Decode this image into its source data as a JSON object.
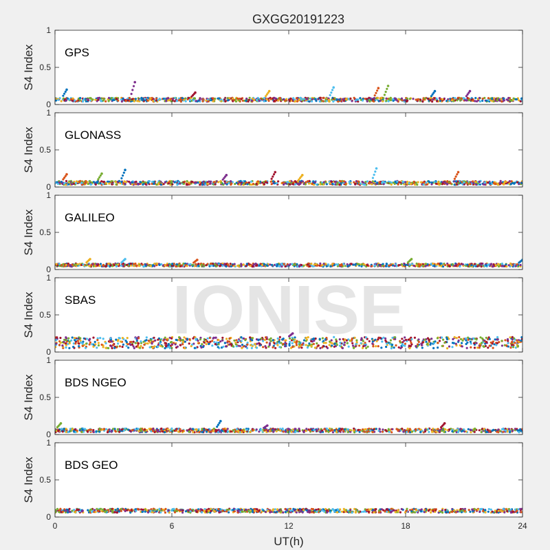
{
  "watermark": "IONISE",
  "chart_data": {
    "type": "scatter",
    "title": "GXGG20191223",
    "xlabel": "UT(h)",
    "ylabel": "S4 Index",
    "xlim": [
      0,
      24
    ],
    "ylim": [
      0,
      1
    ],
    "xticks": [
      0,
      6,
      12,
      18,
      24
    ],
    "yticks": [
      0,
      0.5,
      1
    ],
    "ytick_labels": [
      "0",
      "0.5",
      "1"
    ],
    "grid": false,
    "series_colors": [
      "#0072BD",
      "#D95319",
      "#EDB120",
      "#7E2F8E",
      "#77AC30",
      "#4DBEEE",
      "#A2142F"
    ],
    "panels": [
      {
        "label": "GPS",
        "baseline_range": [
          0.04,
          0.09
        ],
        "spikes": [
          {
            "x": 0.6,
            "y": 0.2
          },
          {
            "x": 4.1,
            "y": 0.3
          },
          {
            "x": 7.2,
            "y": 0.16
          },
          {
            "x": 11.0,
            "y": 0.18
          },
          {
            "x": 14.3,
            "y": 0.23
          },
          {
            "x": 16.6,
            "y": 0.22
          },
          {
            "x": 17.1,
            "y": 0.25
          },
          {
            "x": 19.5,
            "y": 0.18
          },
          {
            "x": 21.3,
            "y": 0.18
          }
        ]
      },
      {
        "label": "GLONASS",
        "baseline_range": [
          0.03,
          0.08
        ],
        "spikes": [
          {
            "x": 0.6,
            "y": 0.17
          },
          {
            "x": 2.4,
            "y": 0.18
          },
          {
            "x": 3.6,
            "y": 0.23
          },
          {
            "x": 8.8,
            "y": 0.16
          },
          {
            "x": 11.3,
            "y": 0.2
          },
          {
            "x": 12.7,
            "y": 0.16
          },
          {
            "x": 16.5,
            "y": 0.25
          },
          {
            "x": 20.7,
            "y": 0.2
          }
        ]
      },
      {
        "label": "GALILEO",
        "baseline_range": [
          0.04,
          0.08
        ],
        "spikes": [
          {
            "x": 1.8,
            "y": 0.14
          },
          {
            "x": 3.6,
            "y": 0.14
          },
          {
            "x": 7.3,
            "y": 0.13
          },
          {
            "x": 18.3,
            "y": 0.14
          },
          {
            "x": 24.0,
            "y": 0.13
          }
        ]
      },
      {
        "label": "SBAS",
        "baseline_range": [
          0.05,
          0.2
        ],
        "spikes": [
          {
            "x": 12.2,
            "y": 0.25
          }
        ]
      },
      {
        "label": "BDS NGEO",
        "baseline_range": [
          0.03,
          0.08
        ],
        "spikes": [
          {
            "x": 0.3,
            "y": 0.15
          },
          {
            "x": 8.5,
            "y": 0.18
          },
          {
            "x": 10.9,
            "y": 0.12
          },
          {
            "x": 20.0,
            "y": 0.15
          }
        ]
      },
      {
        "label": "BDS GEO",
        "baseline_range": [
          0.06,
          0.11
        ],
        "spikes": []
      }
    ]
  }
}
